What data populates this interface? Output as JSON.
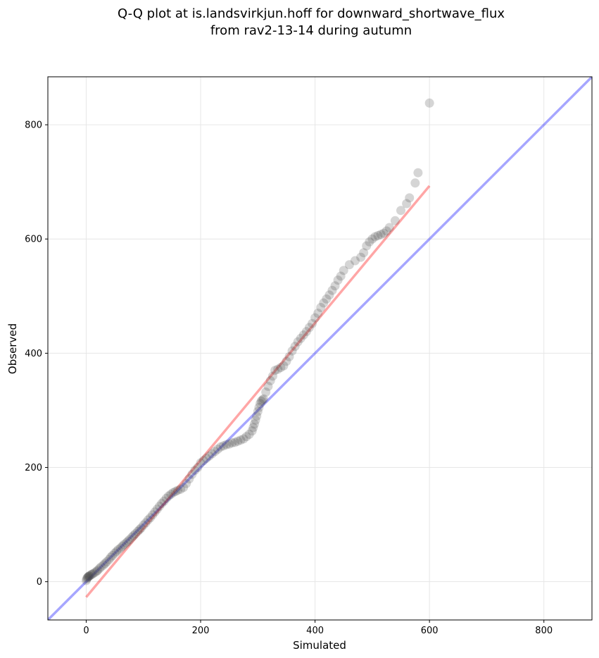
{
  "chart_data": {
    "type": "scatter",
    "title_lines": [
      "Q-Q plot at is.landsvirkjun.hoff for downward_shortwave_flux",
      "from rav2-13-14 during autumn"
    ],
    "xlabel": "Simulated",
    "ylabel": "Observed",
    "xlim": [
      -67,
      884
    ],
    "ylim": [
      -67,
      884
    ],
    "xticks": [
      0,
      200,
      400,
      600,
      800
    ],
    "yticks": [
      0,
      200,
      400,
      600,
      800
    ],
    "grid": true,
    "colors": {
      "points": "#404040",
      "identity_line": "#0000ff",
      "fit_line": "#ff0000",
      "grid": "#e6e6e6"
    },
    "identity_line": {
      "label": "1:1",
      "x": [
        -67,
        884
      ],
      "y": [
        -67,
        884
      ]
    },
    "fit_line": {
      "x": [
        0,
        600
      ],
      "y": [
        -27,
        693
      ]
    },
    "quantile_points": {
      "sim": [
        0,
        1,
        2,
        3,
        4,
        5,
        6,
        8,
        10,
        12,
        15,
        18,
        20,
        23,
        26,
        30,
        33,
        36,
        40,
        43,
        46,
        50,
        53,
        56,
        60,
        63,
        66,
        70,
        73,
        76,
        80,
        83,
        86,
        90,
        93,
        96,
        100,
        104,
        108,
        112,
        116,
        120,
        124,
        128,
        132,
        136,
        140,
        144,
        148,
        152,
        156,
        160,
        165,
        170,
        175,
        180,
        185,
        190,
        195,
        200,
        205,
        210,
        215,
        220,
        225,
        230,
        235,
        240,
        245,
        250,
        255,
        260,
        265,
        270,
        275,
        280,
        285,
        290,
        292,
        294,
        296,
        298,
        300,
        302,
        304,
        306,
        308,
        310,
        314,
        318,
        322,
        326,
        330,
        335,
        340,
        345,
        350,
        355,
        360,
        365,
        370,
        375,
        380,
        385,
        390,
        395,
        400,
        405,
        410,
        415,
        420,
        425,
        430,
        435,
        440,
        445,
        450,
        460,
        470,
        480,
        485,
        490,
        495,
        500,
        505,
        510,
        515,
        520,
        525,
        530,
        540,
        550,
        560,
        565,
        575,
        580,
        600
      ],
      "obs": [
        2,
        5,
        7,
        8,
        9,
        10,
        10,
        12,
        13,
        14,
        16,
        18,
        20,
        23,
        26,
        29,
        32,
        35,
        39,
        43,
        46,
        50,
        53,
        56,
        59,
        62,
        65,
        68,
        71,
        74,
        78,
        81,
        84,
        88,
        91,
        94,
        99,
        103,
        108,
        112,
        117,
        122,
        127,
        132,
        137,
        141,
        146,
        150,
        153,
        156,
        158,
        160,
        162,
        165,
        172,
        180,
        188,
        195,
        200,
        208,
        212,
        216,
        220,
        224,
        228,
        232,
        236,
        238,
        240,
        241,
        243,
        244,
        246,
        248,
        250,
        254,
        258,
        264,
        270,
        276,
        283,
        290,
        298,
        305,
        312,
        316,
        318,
        320,
        332,
        342,
        352,
        360,
        370,
        372,
        375,
        378,
        386,
        394,
        404,
        412,
        420,
        426,
        432,
        438,
        445,
        452,
        462,
        470,
        480,
        488,
        495,
        502,
        510,
        518,
        528,
        535,
        545,
        555,
        562,
        568,
        576,
        588,
        595,
        600,
        604,
        606,
        608,
        610,
        614,
        620,
        632,
        650,
        662,
        672,
        698,
        716,
        838
      ]
    }
  }
}
